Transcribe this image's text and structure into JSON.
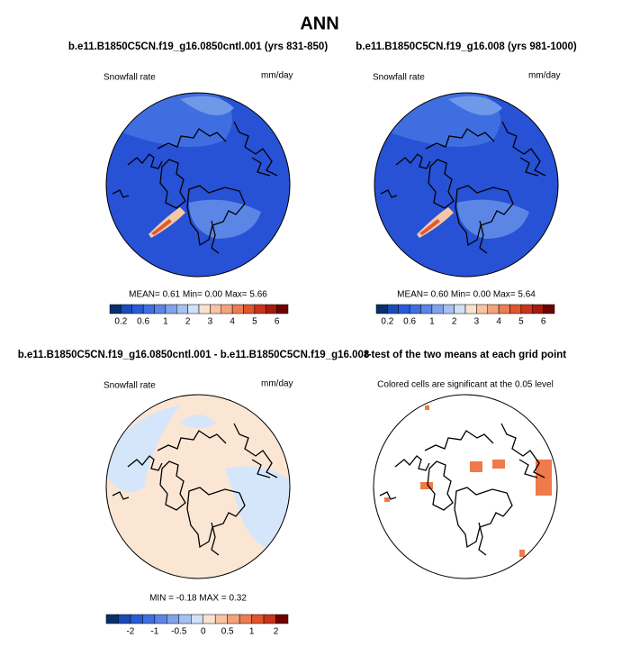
{
  "header": {
    "title": "ANN"
  },
  "panels": [
    {
      "title": "b.e11.B1850C5CN.f19_g16.0850cntl.001 (yrs 831-850)",
      "left_label": "Snowfall rate",
      "right_label": "mm/day",
      "stats": "MEAN=  0.61  Min=  0.00  Max=  5.66"
    },
    {
      "title": "b.e11.B1850C5CN.f19_g16.008 (yrs 981-1000)",
      "left_label": "Snowfall rate",
      "right_label": "mm/day",
      "stats": "MEAN=  0.60  Min=  0.00  Max=  5.64"
    },
    {
      "title": "b.e11.B1850C5CN.f19_g16.0850cntl.001 - b.e11.B1850C5CN.f19_g16.008",
      "left_label": "Snowfall rate",
      "right_label": "mm/day",
      "stats": "MIN =  -0.18  MAX =  0.32"
    },
    {
      "title": "t-test of the two means at each grid point",
      "subtitle": "Colored cells are significant at the 0.05 level"
    }
  ],
  "colorbars": [
    {
      "labels": [
        "0.2",
        "0.6",
        "1",
        "2",
        "3",
        "4",
        "5",
        "6"
      ]
    },
    {
      "labels": [
        "0.2",
        "0.6",
        "1",
        "2",
        "3",
        "4",
        "5",
        "6"
      ]
    },
    {
      "labels": [
        "-2",
        "-1",
        "-0.5",
        "0",
        "0.5",
        "1",
        "2"
      ]
    }
  ]
}
